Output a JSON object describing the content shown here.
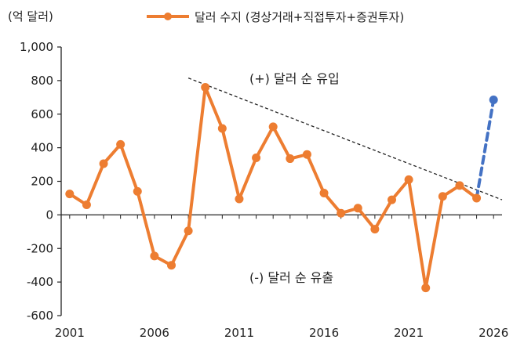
{
  "chart_data": {
    "type": "line",
    "unit_label": "(억 달러)",
    "x": [
      2001,
      2002,
      2003,
      2004,
      2005,
      2006,
      2007,
      2008,
      2009,
      2010,
      2011,
      2012,
      2013,
      2014,
      2015,
      2016,
      2017,
      2018,
      2019,
      2020,
      2021,
      2022,
      2023,
      2024,
      2025
    ],
    "series": [
      {
        "name": "달러 수지 (경상거래+직접투자+증권투자)",
        "color": "#ED7D31",
        "values": [
          125,
          60,
          305,
          420,
          140,
          -245,
          -300,
          -95,
          760,
          515,
          95,
          340,
          525,
          335,
          360,
          130,
          10,
          40,
          -85,
          90,
          210,
          -435,
          110,
          175,
          100
        ]
      }
    ],
    "projection": {
      "color": "#4472C4",
      "from": {
        "x": 2025,
        "y": 100
      },
      "to": {
        "x": 2026,
        "y": 685
      }
    },
    "trendline": {
      "color": "#222222",
      "from": {
        "x": 2008,
        "y": 815
      },
      "to": {
        "x": 2026.5,
        "y": 90
      }
    },
    "xlim": [
      2000.5,
      2026.5
    ],
    "ylim": [
      -600,
      1000
    ],
    "x_ticks": [
      2001,
      2006,
      2011,
      2016,
      2021,
      2026
    ],
    "y_ticks": [
      -600,
      -400,
      -200,
      0,
      200,
      400,
      600,
      800,
      1000
    ],
    "y_tick_labels": [
      "-600",
      "-400",
      "-200",
      "0",
      "200",
      "400",
      "600",
      "800",
      "1,000"
    ],
    "annotations": {
      "upper": "(+) 달러 순 유입",
      "lower": "(-) 달러 순 유출"
    },
    "legend_position": "top-center",
    "grid": false
  }
}
